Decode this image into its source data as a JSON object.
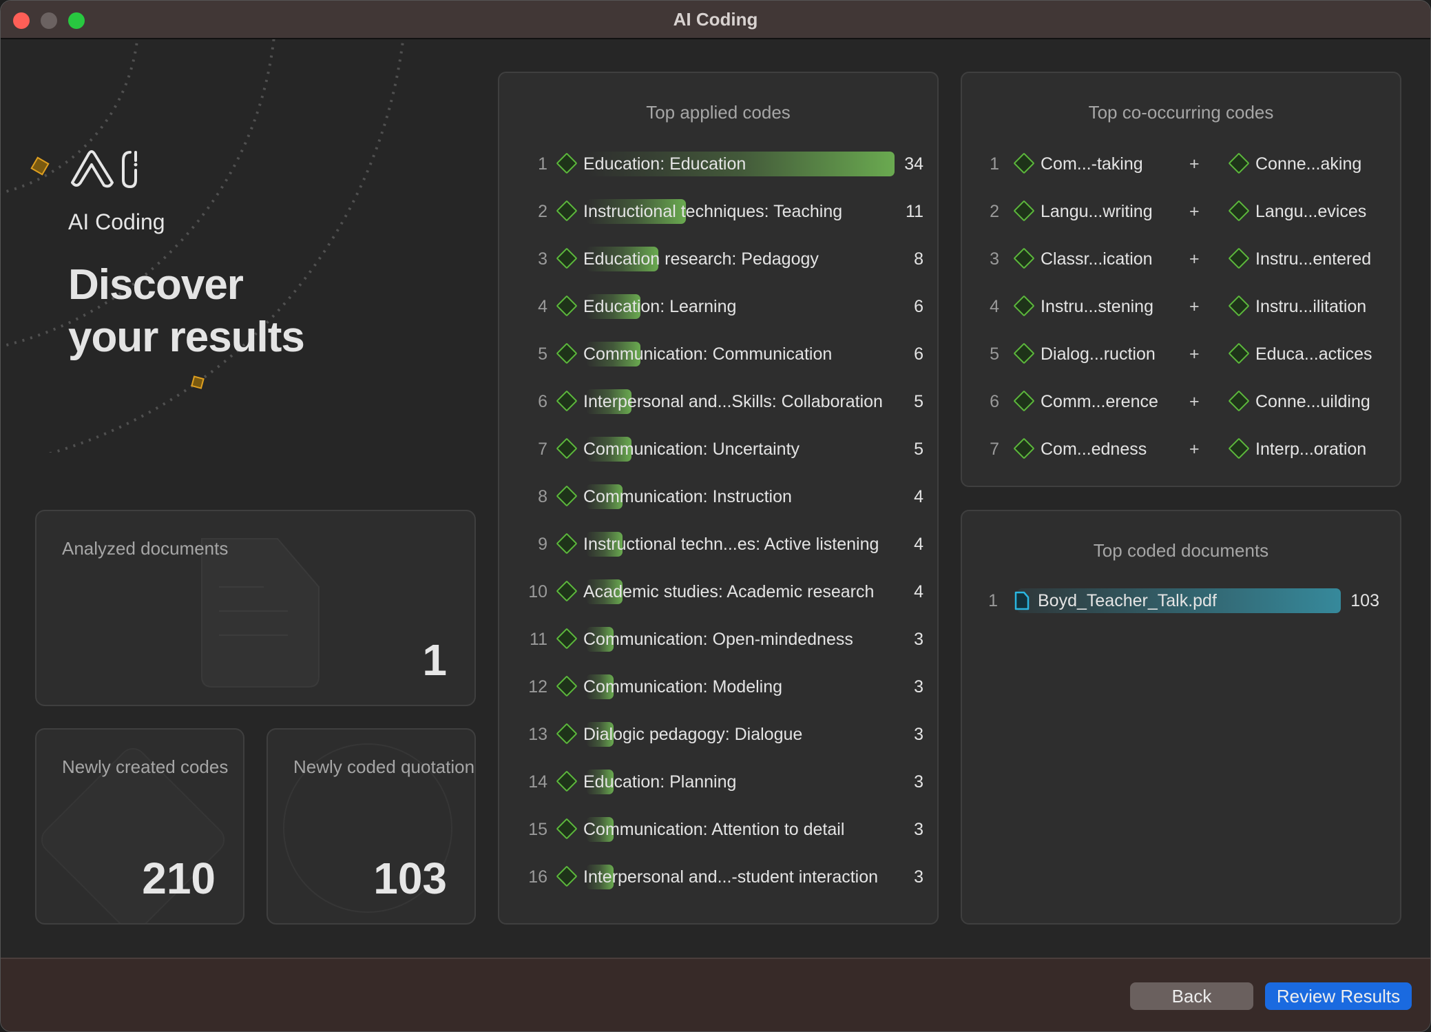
{
  "window": {
    "title": "AI Coding"
  },
  "hero": {
    "brand": "AI Coding",
    "headline_line1": "Discover",
    "headline_line2": "your results"
  },
  "stats": [
    {
      "label": "Analyzed documents",
      "value": "1",
      "icon": "document-icon"
    },
    {
      "label": "Newly created codes",
      "value": "210",
      "icon": "code-diamond-icon"
    },
    {
      "label": "Newly coded quotations",
      "value": "103",
      "icon": "quote-icon"
    }
  ],
  "top_applied_codes": {
    "title": "Top applied codes",
    "max_count": 34,
    "bar_color": "#6aaa50",
    "items": [
      {
        "rank": "1",
        "name": "Education: Education",
        "count": "34"
      },
      {
        "rank": "2",
        "name": "Instructional techniques: Teaching",
        "count": "11"
      },
      {
        "rank": "3",
        "name": "Education research: Pedagogy",
        "count": "8"
      },
      {
        "rank": "4",
        "name": "Education: Learning",
        "count": "6"
      },
      {
        "rank": "5",
        "name": "Communication: Communication",
        "count": "6"
      },
      {
        "rank": "6",
        "name": "Interpersonal and...Skills: Collaboration",
        "count": "5"
      },
      {
        "rank": "7",
        "name": "Communication: Uncertainty",
        "count": "5"
      },
      {
        "rank": "8",
        "name": "Communication: Instruction",
        "count": "4"
      },
      {
        "rank": "9",
        "name": "Instructional techn...es: Active listening",
        "count": "4"
      },
      {
        "rank": "10",
        "name": "Academic studies: Academic research",
        "count": "4"
      },
      {
        "rank": "11",
        "name": "Communication: Open-mindedness",
        "count": "3"
      },
      {
        "rank": "12",
        "name": "Communication: Modeling",
        "count": "3"
      },
      {
        "rank": "13",
        "name": "Dialogic pedagogy: Dialogue",
        "count": "3"
      },
      {
        "rank": "14",
        "name": "Education: Planning",
        "count": "3"
      },
      {
        "rank": "15",
        "name": "Communication: Attention to detail",
        "count": "3"
      },
      {
        "rank": "16",
        "name": "Interpersonal and...-student interaction",
        "count": "3"
      }
    ]
  },
  "top_cooccurring_codes": {
    "title": "Top co-occurring codes",
    "plus": "+",
    "items": [
      {
        "rank": "1",
        "a": "Com...-taking",
        "b": "Conne...aking"
      },
      {
        "rank": "2",
        "a": "Langu...writing",
        "b": "Langu...evices"
      },
      {
        "rank": "3",
        "a": "Classr...ication",
        "b": "Instru...entered"
      },
      {
        "rank": "4",
        "a": "Instru...stening",
        "b": "Instru...ilitation"
      },
      {
        "rank": "5",
        "a": "Dialog...ruction",
        "b": "Educa...actices"
      },
      {
        "rank": "6",
        "a": "Comm...erence",
        "b": "Conne...uilding"
      },
      {
        "rank": "7",
        "a": "Com...edness",
        "b": "Interp...oration"
      }
    ]
  },
  "top_coded_documents": {
    "title": "Top coded documents",
    "bar_color": "#36899b",
    "items": [
      {
        "rank": "1",
        "name": "Boyd_Teacher_Talk.pdf",
        "count": "103"
      }
    ]
  },
  "footer": {
    "back_label": "Back",
    "review_label": "Review Results",
    "accent": "#1a6ae0"
  }
}
